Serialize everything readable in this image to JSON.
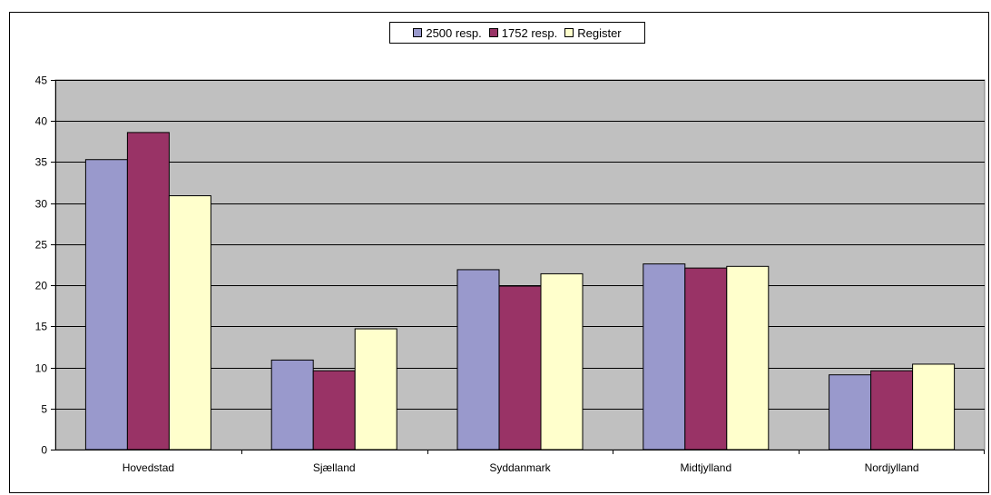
{
  "chart_data": {
    "type": "bar",
    "categories": [
      "Hovedstad",
      "Sjælland",
      "Syddanmark",
      "Midtjylland",
      "Nordjylland"
    ],
    "series": [
      {
        "name": "2500 resp.",
        "color": "#9999cc",
        "values": [
          35.3,
          10.9,
          21.9,
          22.6,
          9.1
        ]
      },
      {
        "name": "1752 resp.",
        "color": "#993366",
        "values": [
          38.6,
          9.6,
          19.9,
          22.1,
          9.6
        ]
      },
      {
        "name": "Register",
        "color": "#ffffcc",
        "values": [
          30.9,
          14.7,
          21.4,
          22.3,
          10.4
        ]
      }
    ],
    "yticks": [
      "0",
      "5",
      "10",
      "15",
      "20",
      "25",
      "30",
      "35",
      "40",
      "45"
    ],
    "ylim": [
      0,
      45
    ],
    "grid": true,
    "plot_background": "#c0c0c0",
    "legend_position": "top-center"
  }
}
